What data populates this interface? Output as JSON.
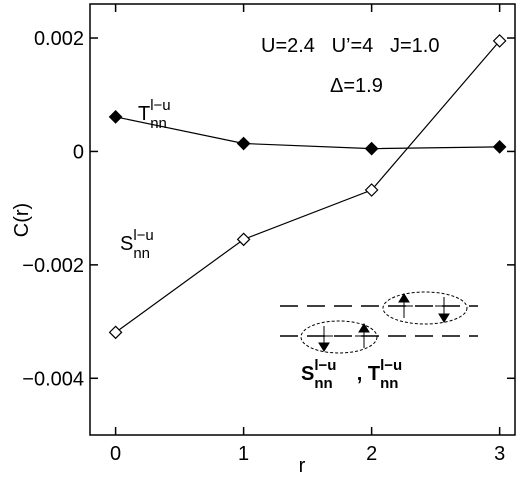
{
  "chart_data": {
    "type": "line",
    "x_label": "r",
    "y_label": "C(r)",
    "annotations": [
      "U=2.4   U’=4   J=1.0",
      "Δ=1.9"
    ],
    "x": [
      0,
      1,
      2,
      3
    ],
    "series": [
      {
        "name": "T",
        "superscript": "l−u",
        "subscript": "nn",
        "color": "#000000",
        "marker": "filled-diamond",
        "values": [
          0.00061,
          0.00014,
          5e-05,
          8e-05
        ]
      },
      {
        "name": "S",
        "superscript": "l−u",
        "subscript": "nn",
        "color": "#000000",
        "marker": "open-diamond",
        "values": [
          -0.00319,
          -0.00155,
          -0.00068,
          0.00195
        ]
      }
    ],
    "inset_label": [
      {
        "text": "S",
        "sup": "l−u",
        "sub": "nn"
      },
      {
        "text": ", T",
        "sup": "l−u",
        "sub": "nn"
      }
    ],
    "xlim": [
      -0.2,
      3.12
    ],
    "xticks": [
      0,
      1,
      2,
      3
    ],
    "ylim": [
      -0.005,
      0.0026
    ],
    "yticks": [
      0.002,
      {
        "value": 0,
        "label": "0"
      },
      {
        "value": -0.002,
        "label": "−0.002"
      },
      {
        "value": -0.004,
        "label": "−0.004"
      }
    ]
  }
}
